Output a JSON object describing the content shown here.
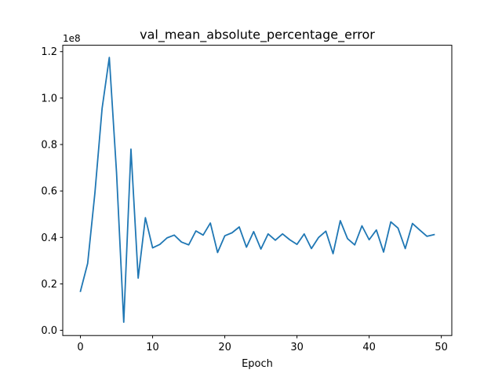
{
  "chart_data": {
    "type": "line",
    "title": "val_mean_absolute_percentage_error",
    "xlabel": "Epoch",
    "ylabel": "",
    "multiplier_label": "1e8",
    "xlim": [
      -2.45,
      51.45
    ],
    "ylim": [
      -0.0224,
      1.2275
    ],
    "xticks": [
      0,
      10,
      20,
      30,
      40,
      50
    ],
    "xtick_labels": [
      "0",
      "10",
      "20",
      "30",
      "40",
      "50"
    ],
    "yticks": [
      0.0,
      0.2,
      0.4,
      0.6,
      0.8,
      1.0,
      1.2
    ],
    "ytick_labels": [
      "0.0",
      "0.2",
      "0.4",
      "0.6",
      "0.8",
      "1.0",
      "1.2"
    ],
    "grid": false,
    "series": [
      {
        "color": "#1f77b4",
        "x": [
          0,
          1,
          2,
          3,
          4,
          5,
          6,
          7,
          8,
          9,
          10,
          11,
          12,
          13,
          14,
          15,
          16,
          17,
          18,
          19,
          20,
          21,
          22,
          23,
          24,
          25,
          26,
          27,
          28,
          29,
          30,
          31,
          32,
          33,
          34,
          35,
          36,
          37,
          38,
          39,
          40,
          41,
          42,
          43,
          44,
          45,
          46,
          47,
          48,
          49
        ],
        "values": [
          0.168,
          0.288,
          0.59,
          0.955,
          1.175,
          0.68,
          0.035,
          0.78,
          0.225,
          0.485,
          0.355,
          0.37,
          0.398,
          0.41,
          0.38,
          0.368,
          0.428,
          0.41,
          0.462,
          0.335,
          0.407,
          0.42,
          0.445,
          0.358,
          0.425,
          0.35,
          0.415,
          0.388,
          0.415,
          0.39,
          0.37,
          0.415,
          0.352,
          0.4,
          0.427,
          0.33,
          0.472,
          0.395,
          0.368,
          0.45,
          0.39,
          0.432,
          0.337,
          0.467,
          0.44,
          0.352,
          0.46,
          0.432,
          0.405,
          0.412
        ]
      }
    ]
  }
}
